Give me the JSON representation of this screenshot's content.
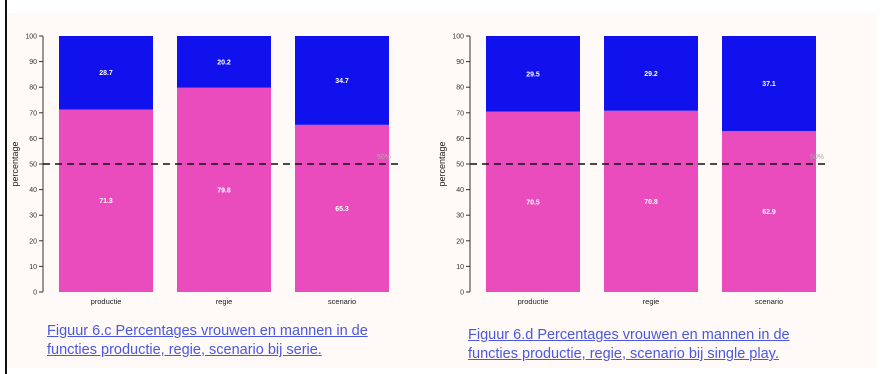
{
  "colors": {
    "women": "#ea4cbd",
    "men": "#1111ee",
    "caption": "#4a58e0"
  },
  "chart_data": [
    {
      "type": "bar",
      "stacked": true,
      "categories": [
        "productie",
        "regie",
        "scenario"
      ],
      "series": [
        {
          "values": [
            71.3,
            79.8,
            65.3
          ]
        },
        {
          "values": [
            28.7,
            20.2,
            34.7
          ]
        }
      ],
      "ylabel": "percentage",
      "ylim": [
        0,
        100
      ],
      "yticks": [
        0,
        10,
        20,
        30,
        40,
        50,
        60,
        70,
        80,
        90,
        100
      ],
      "reference_line": {
        "y": 50,
        "label": "50%"
      },
      "caption_lines": [
        "Figuur 6.c Percentages vrouwen en mannen in de",
        "functies productie, regie, scenario bij serie."
      ]
    },
    {
      "type": "bar",
      "stacked": true,
      "categories": [
        "productie",
        "regie",
        "scenario"
      ],
      "series": [
        {
          "values": [
            70.5,
            70.8,
            62.9
          ]
        },
        {
          "values": [
            29.5,
            29.2,
            37.1
          ]
        }
      ],
      "ylabel": "percentage",
      "ylim": [
        0,
        100
      ],
      "yticks": [
        0,
        10,
        20,
        30,
        40,
        50,
        60,
        70,
        80,
        90,
        100
      ],
      "reference_line": {
        "y": 50,
        "label": "50%"
      },
      "caption_lines": [
        "Figuur 6.d Percentages vrouwen en mannen in de",
        "functies productie, regie, scenario bij single play."
      ]
    }
  ]
}
